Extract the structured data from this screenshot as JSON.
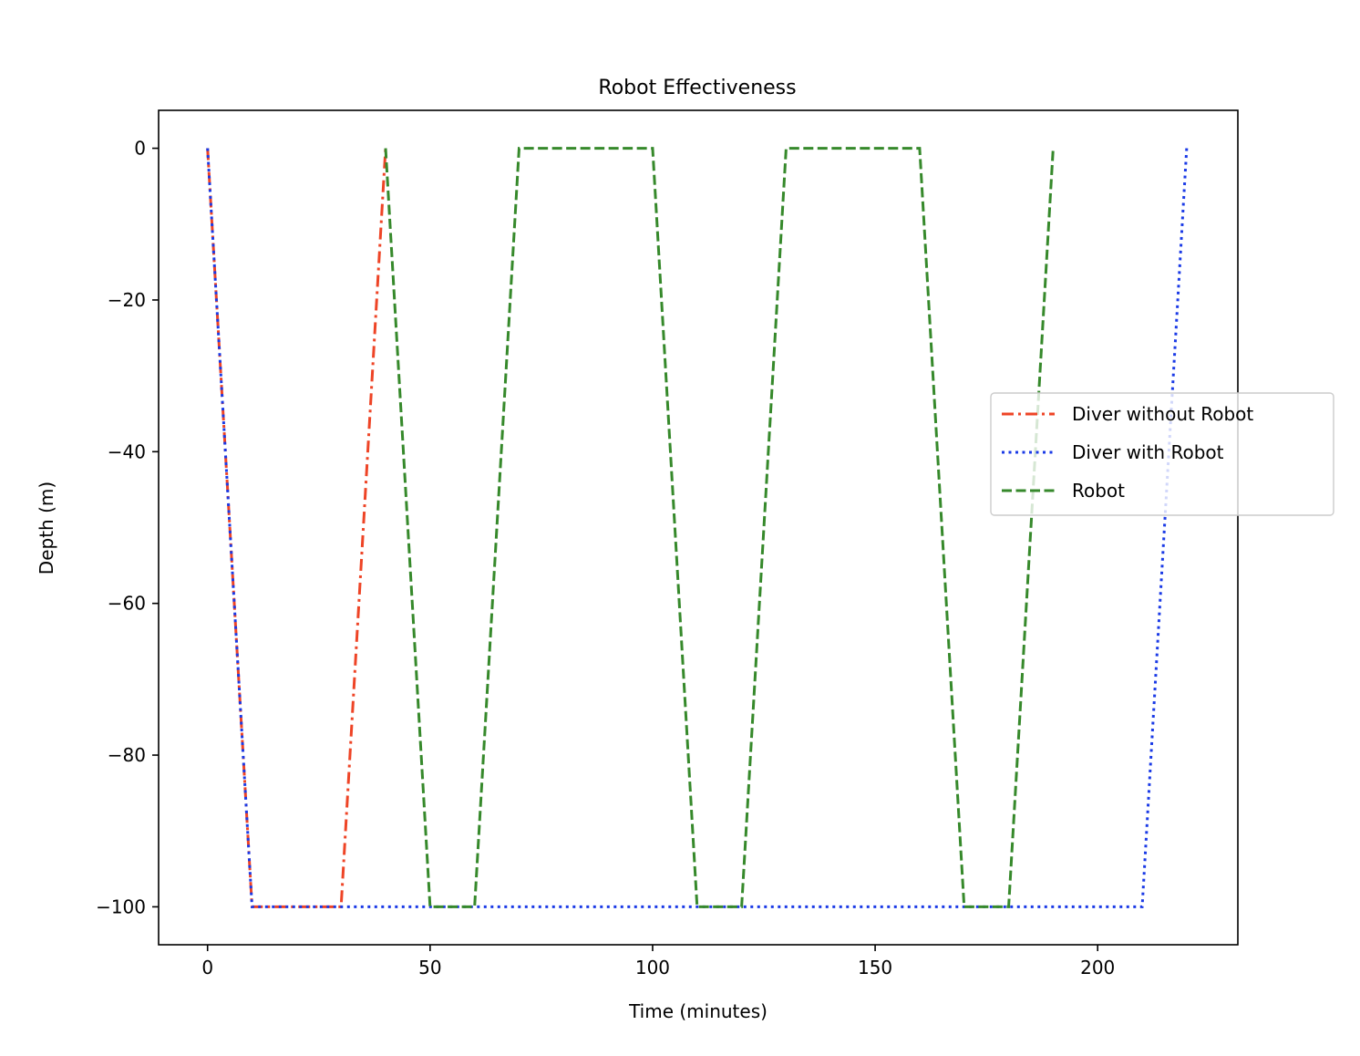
{
  "chart_data": {
    "type": "line",
    "title": "Robot Effectiveness",
    "xlabel": "Time (minutes)",
    "ylabel": "Depth (m)",
    "xlim": [
      -11,
      231.5
    ],
    "ylim": [
      -105,
      5
    ],
    "xticks": [
      0,
      50,
      100,
      150,
      200
    ],
    "xtick_labels": [
      "0",
      "50",
      "100",
      "150",
      "200"
    ],
    "yticks": [
      0,
      -20,
      -40,
      -60,
      -80,
      -100
    ],
    "ytick_labels": [
      "0",
      "−20",
      "−40",
      "−60",
      "−80",
      "−100"
    ],
    "grid": false,
    "legend_position": "center-right",
    "series": [
      {
        "name": "Diver without Robot",
        "color": "#ee4426",
        "style": "dashdot",
        "x": [
          0,
          10,
          30,
          40
        ],
        "y": [
          0,
          -100,
          -100,
          0
        ]
      },
      {
        "name": "Diver with Robot",
        "color": "#1a3ae6",
        "style": "dotted",
        "x": [
          0,
          10,
          210,
          220
        ],
        "y": [
          0,
          -100,
          -100,
          0
        ]
      },
      {
        "name": "Robot",
        "color": "#36892b",
        "style": "dashed",
        "x": [
          40,
          50,
          60,
          70,
          100,
          110,
          120,
          130,
          160,
          170,
          180,
          190
        ],
        "y": [
          0,
          -100,
          -100,
          0,
          0,
          -100,
          -100,
          0,
          0,
          -100,
          -100,
          0
        ]
      }
    ]
  }
}
